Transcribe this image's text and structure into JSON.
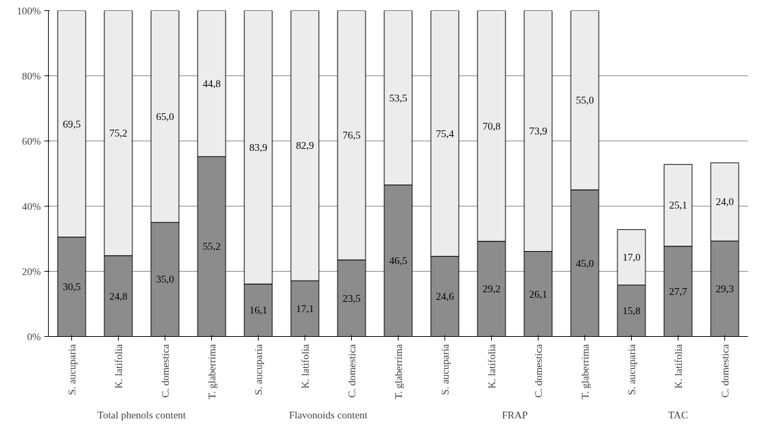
{
  "chart_data": {
    "type": "bar",
    "stacked": true,
    "categories": [
      "S. aucuparia",
      "K. latifolia",
      "C. domestica",
      "T. glaberrima",
      "S. aucuparia",
      "K. latifolia",
      "C. domestica",
      "T. glaberrima",
      "S. aucuparia",
      "K. latifolia",
      "C. domestica",
      "T. glaberrima",
      "S. aucuparia",
      "K. latifolia",
      "C. domestica"
    ],
    "series": [
      {
        "color": "#8c8c8c",
        "values": [
          30.5,
          24.8,
          35.0,
          55.2,
          16.1,
          17.1,
          23.5,
          46.5,
          24.6,
          29.2,
          26.1,
          45.0,
          15.8,
          27.7,
          29.3
        ],
        "value_labels": [
          "30,5",
          "24,8",
          "35,0",
          "55,2",
          "16,1",
          "17,1",
          "23,5",
          "46,5",
          "24,6",
          "29,2",
          "26,1",
          "45,0",
          "15,8",
          "27,7",
          "29,3"
        ]
      },
      {
        "color": "#ececec",
        "values": [
          69.5,
          75.2,
          65.0,
          44.8,
          83.9,
          82.9,
          76.5,
          53.5,
          75.4,
          70.8,
          73.9,
          55.0,
          17.0,
          25.1,
          24.0
        ],
        "value_labels": [
          "69,5",
          "75,2",
          "65,0",
          "44,8",
          "83,9",
          "82,9",
          "76,5",
          "53,5",
          "75,4",
          "70,8",
          "73,9",
          "55,0",
          "17,0",
          "25,1",
          "24,0"
        ]
      }
    ],
    "annotations": [
      "Total phenols content",
      "Flavonoids content",
      "FRAP",
      "TAC"
    ],
    "ylim": [
      0,
      100
    ],
    "yticks": [
      {
        "value": 0,
        "label": "0%"
      },
      {
        "value": 20,
        "label": "20%"
      },
      {
        "value": 40,
        "label": "40%"
      },
      {
        "value": 60,
        "label": "60%"
      },
      {
        "value": 80,
        "label": "80%"
      },
      {
        "value": 100,
        "label": "100%"
      }
    ],
    "grid": "y"
  }
}
